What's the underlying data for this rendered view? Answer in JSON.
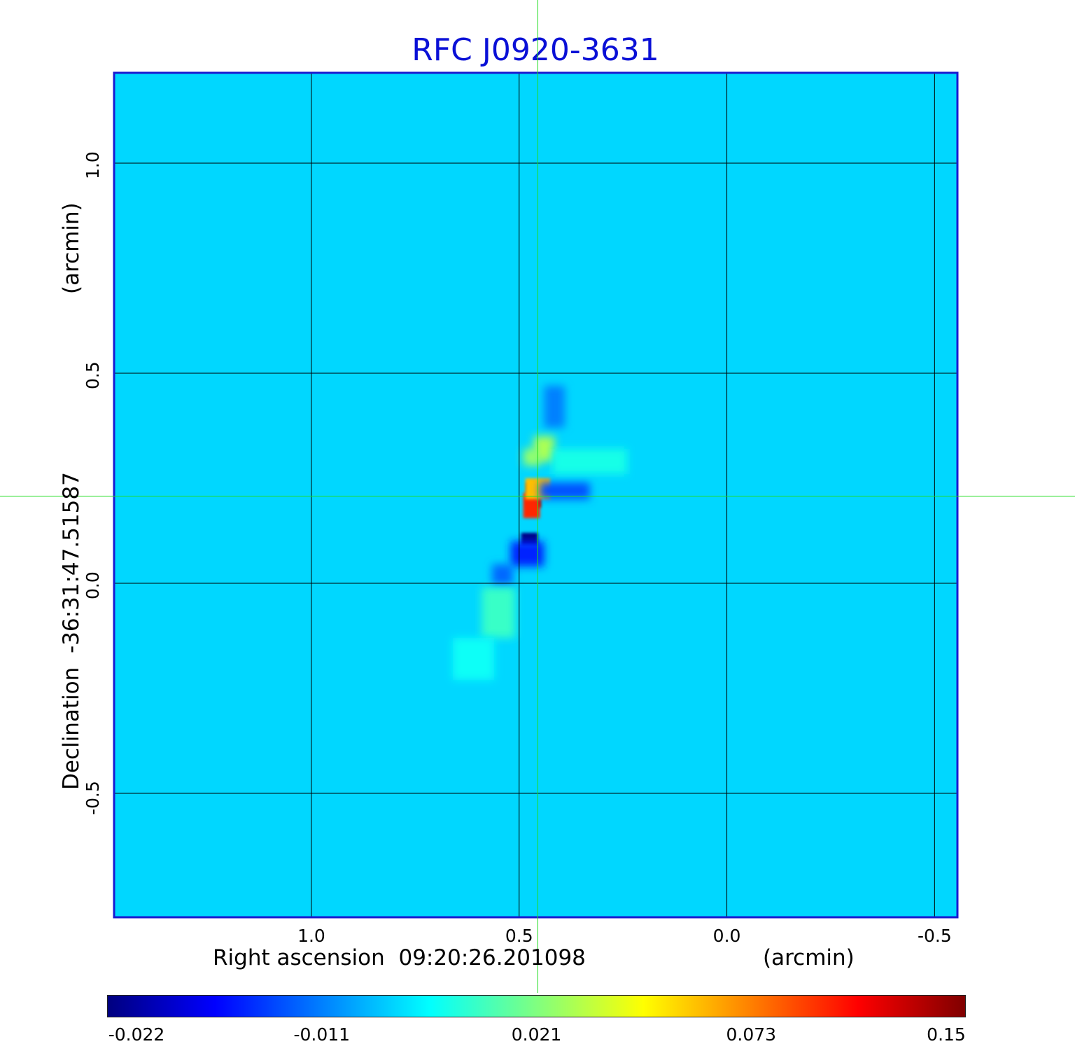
{
  "chart_data": {
    "type": "heatmap",
    "title": "RFC J0920-3631",
    "xlabel": "Right ascension  09:20:26.201098",
    "xunit": "(arcmin)",
    "ylabel": "Declination  -36:31:47.51587",
    "yunit": "(arcmin)",
    "x_axis_reversed": true,
    "xlim": [
      1.475,
      -0.555
    ],
    "ylim": [
      -0.795,
      1.215
    ],
    "x_ticks": [
      {
        "value": 1.0,
        "label": "1.0"
      },
      {
        "value": 0.5,
        "label": "0.5"
      },
      {
        "value": 0.0,
        "label": "0.0"
      },
      {
        "value": -0.5,
        "label": "-0.5"
      }
    ],
    "y_ticks": [
      {
        "value": 1.0,
        "label": "1.0"
      },
      {
        "value": 0.5,
        "label": "0.5"
      },
      {
        "value": 0.0,
        "label": "0.0"
      },
      {
        "value": -0.5,
        "label": "-0.5"
      }
    ],
    "grid": true,
    "crosshair": {
      "x": 0.455,
      "y": 0.207,
      "color": "#22dd22"
    },
    "colormap": "jet",
    "background_value": 0.0,
    "colorbar": {
      "labels": [
        "-0.022",
        "-0.011",
        "0.021",
        "0.073",
        "0.15"
      ],
      "min": -0.022,
      "max": 0.15
    },
    "features": [
      {
        "x": 0.465,
        "y": 0.21,
        "w": 0.035,
        "h": 0.06,
        "value": 0.15
      },
      {
        "x": 0.47,
        "y": 0.185,
        "w": 0.04,
        "h": 0.06,
        "value": 0.1
      },
      {
        "x": 0.455,
        "y": 0.225,
        "w": 0.06,
        "h": 0.05,
        "value": 0.06
      },
      {
        "x": 0.475,
        "y": 0.105,
        "w": 0.04,
        "h": 0.03,
        "value": -0.022
      },
      {
        "x": 0.48,
        "y": 0.07,
        "w": 0.08,
        "h": 0.06,
        "value": -0.015
      },
      {
        "x": 0.54,
        "y": 0.02,
        "w": 0.05,
        "h": 0.05,
        "value": -0.012
      },
      {
        "x": 0.39,
        "y": 0.22,
        "w": 0.12,
        "h": 0.04,
        "value": -0.013
      },
      {
        "x": 0.415,
        "y": 0.42,
        "w": 0.05,
        "h": 0.1,
        "value": -0.011
      },
      {
        "x": 0.44,
        "y": 0.32,
        "w": 0.05,
        "h": 0.06,
        "value": 0.03
      },
      {
        "x": 0.47,
        "y": 0.3,
        "w": 0.04,
        "h": 0.04,
        "value": 0.025
      },
      {
        "x": 0.55,
        "y": -0.07,
        "w": 0.08,
        "h": 0.12,
        "value": 0.012
      },
      {
        "x": 0.33,
        "y": 0.29,
        "w": 0.18,
        "h": 0.06,
        "value": 0.008
      },
      {
        "x": 0.61,
        "y": -0.18,
        "w": 0.1,
        "h": 0.1,
        "value": 0.006
      }
    ]
  }
}
